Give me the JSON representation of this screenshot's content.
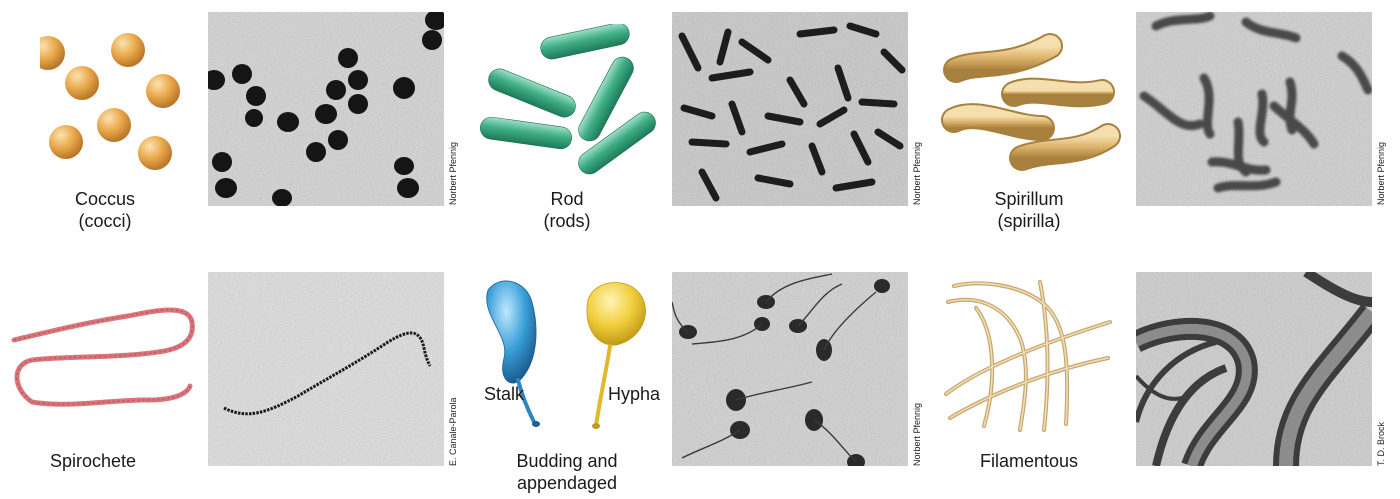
{
  "cells": [
    {
      "key": "coccus",
      "label_lines": [
        "Coccus",
        "(cocci)"
      ],
      "credit": "Norbert Pfennig"
    },
    {
      "key": "rod",
      "label_lines": [
        "Rod",
        "(rods)"
      ],
      "credit": "Norbert Pfennig"
    },
    {
      "key": "spirillum",
      "label_lines": [
        "Spirillum",
        "(spirilla)"
      ],
      "credit": "Norbert Pfennig"
    },
    {
      "key": "spirochete",
      "label_lines": [
        "Spirochete"
      ],
      "credit": "E. Canale-Parola"
    },
    {
      "key": "budding",
      "label_lines": [
        "Budding and",
        "appendaged"
      ],
      "credit": "Norbert Pfennig",
      "side_labels": {
        "stalk": "Stalk",
        "hypha": "Hypha"
      }
    },
    {
      "key": "filamentous",
      "label_lines": [
        "Filamentous"
      ],
      "credit": "T. D. Brock"
    }
  ],
  "colors": {
    "coccus": "#e8a84a",
    "rod": "#3fae86",
    "spirillum": "#dcb36b",
    "spirochete": "#d9757a",
    "budding_blue": "#3a9fd8",
    "budding_yellow": "#f2cf3c",
    "filament": "#e2c597"
  }
}
